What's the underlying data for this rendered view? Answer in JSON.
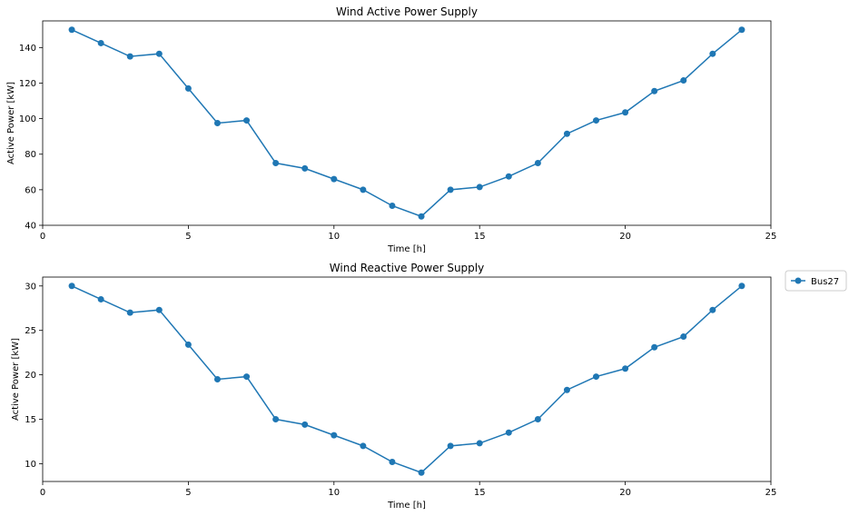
{
  "legend": {
    "label": "Bus27",
    "location": "right-center"
  },
  "colors": {
    "series": "#1f77b4"
  },
  "chart_data": [
    {
      "type": "line",
      "title": "Wind Active Power Supply",
      "xlabel": "Time [h]",
      "ylabel": "Active Power [kW]",
      "xlim": [
        0,
        25
      ],
      "ylim": [
        40,
        155
      ],
      "xticks": [
        0,
        5,
        10,
        15,
        20,
        25
      ],
      "yticks": [
        40,
        60,
        80,
        100,
        120,
        140
      ],
      "grid": false,
      "series": [
        {
          "name": "Bus27",
          "x": [
            1,
            2,
            3,
            4,
            5,
            6,
            7,
            8,
            9,
            10,
            11,
            12,
            13,
            14,
            15,
            16,
            17,
            18,
            19,
            20,
            21,
            22,
            23,
            24
          ],
          "y": [
            150,
            142.5,
            135,
            136.5,
            117,
            97.5,
            99,
            75,
            72,
            66,
            60,
            51,
            45,
            60,
            61.5,
            67.5,
            75,
            91.5,
            99,
            103.5,
            115.5,
            121.5,
            136.5,
            150
          ]
        }
      ]
    },
    {
      "type": "line",
      "title": "Wind Reactive Power Supply",
      "xlabel": "Time [h]",
      "ylabel": "Active Power [kW]",
      "xlim": [
        0,
        25
      ],
      "ylim": [
        8,
        31
      ],
      "xticks": [
        0,
        5,
        10,
        15,
        20,
        25
      ],
      "yticks": [
        10,
        15,
        20,
        25,
        30
      ],
      "grid": false,
      "series": [
        {
          "name": "Bus27",
          "x": [
            1,
            2,
            3,
            4,
            5,
            6,
            7,
            8,
            9,
            10,
            11,
            12,
            13,
            14,
            15,
            16,
            17,
            18,
            19,
            20,
            21,
            22,
            23,
            24
          ],
          "y": [
            30,
            28.5,
            27,
            27.3,
            23.4,
            19.5,
            19.8,
            15,
            14.4,
            13.2,
            12,
            10.2,
            9,
            12,
            12.3,
            13.5,
            15,
            18.3,
            19.8,
            20.7,
            23.1,
            24.3,
            27.3,
            30
          ]
        }
      ]
    }
  ]
}
